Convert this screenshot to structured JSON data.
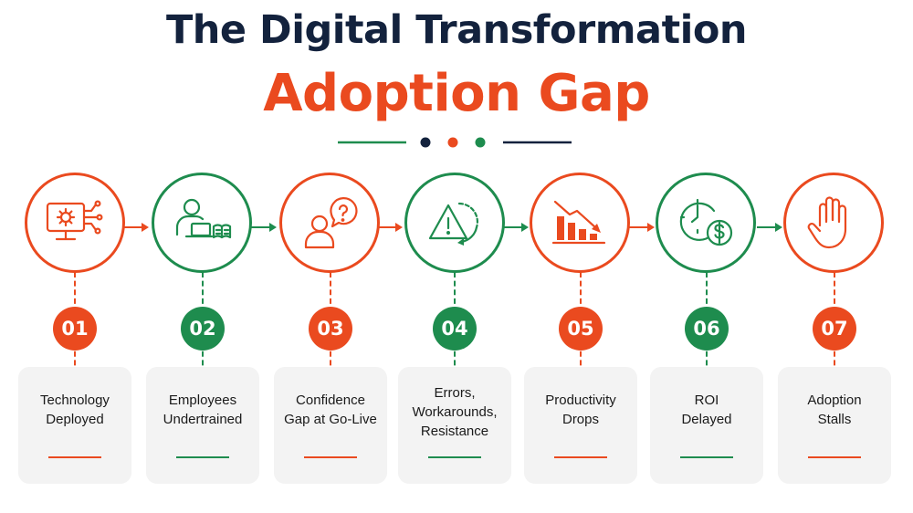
{
  "header": {
    "title_line1": "The Digital Transformation",
    "title_line2": "Adoption Gap"
  },
  "colors": {
    "orange": "#ea4a1f",
    "green": "#1e8c4e",
    "navy": "#13223d",
    "card": "#f3f3f3"
  },
  "steps": [
    {
      "number": "01",
      "label": "Technology\nDeployed",
      "icon": "monitor-gear-icon",
      "color": "orange"
    },
    {
      "number": "02",
      "label": "Employees\nUndertrained",
      "icon": "person-laptop-book-icon",
      "color": "green"
    },
    {
      "number": "03",
      "label": "Confidence\nGap at Go-Live",
      "icon": "person-question-icon",
      "color": "orange"
    },
    {
      "number": "04",
      "label": "Errors,\nWorkarounds,\nResistance",
      "icon": "warning-cycle-icon",
      "color": "green"
    },
    {
      "number": "05",
      "label": "Productivity\nDrops",
      "icon": "declining-bars-icon",
      "color": "orange"
    },
    {
      "number": "06",
      "label": "ROI\nDelayed",
      "icon": "clock-dollar-icon",
      "color": "green"
    },
    {
      "number": "07",
      "label": "Adoption\nStalls",
      "icon": "stop-hand-icon",
      "color": "orange"
    }
  ]
}
